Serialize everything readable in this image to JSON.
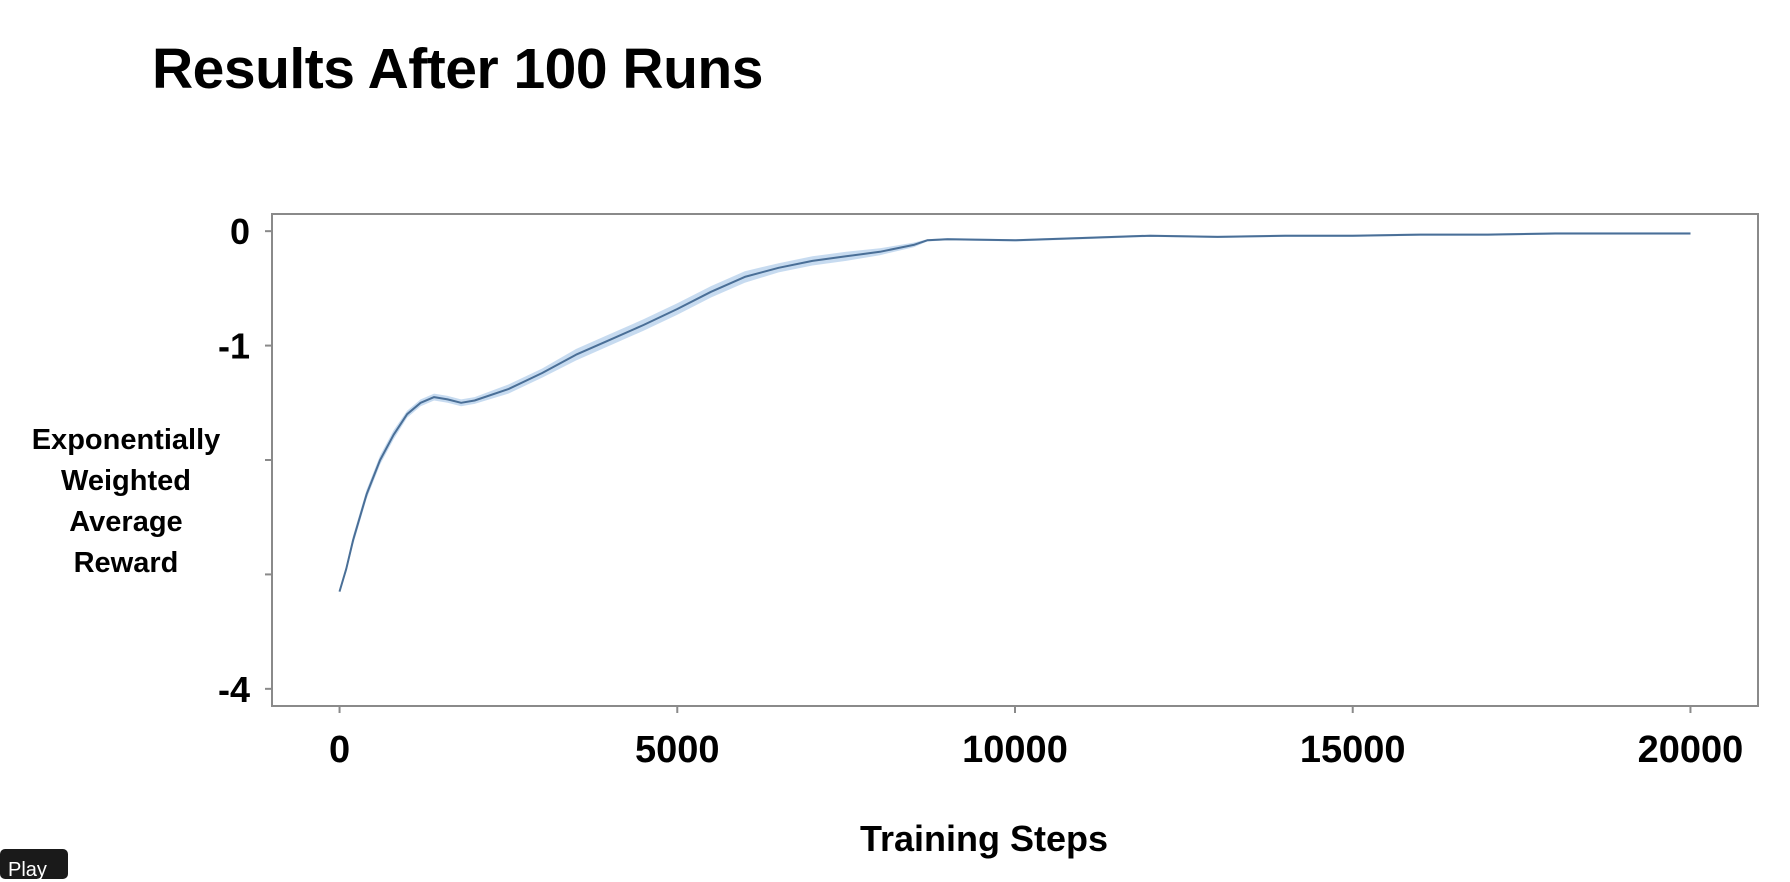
{
  "chart_data": {
    "type": "line",
    "title": "Results After 100 Runs",
    "xlabel": "Training Steps",
    "ylabel_lines": [
      "Exponentially",
      "Weighted",
      "Average",
      "Reward"
    ],
    "xlim": [
      -1000,
      21000
    ],
    "ylim": [
      -4.15,
      0.15
    ],
    "x_ticks": [
      0,
      5000,
      10000,
      15000,
      20000
    ],
    "x_tick_labels": [
      "0",
      "5000",
      "10000",
      "15000",
      "20000"
    ],
    "y_ticks": [
      0,
      -1,
      -2,
      -3,
      -4
    ],
    "y_tick_labels": [
      "0",
      "-1",
      "",
      "",
      "-4"
    ],
    "grid": false,
    "series": [
      {
        "color": "#4a6f97",
        "band_color": "#b9d2ec",
        "x": [
          0,
          100,
          200,
          400,
          600,
          800,
          1000,
          1200,
          1400,
          1600,
          1800,
          2000,
          2500,
          3000,
          3500,
          4000,
          4500,
          5000,
          5500,
          6000,
          6500,
          7000,
          7500,
          8000,
          8500,
          8700,
          9000,
          10000,
          11000,
          12000,
          13000,
          14000,
          15000,
          16000,
          17000,
          18000,
          19000,
          20000
        ],
        "y": [
          -3.15,
          -2.95,
          -2.7,
          -2.3,
          -2.0,
          -1.78,
          -1.6,
          -1.5,
          -1.45,
          -1.47,
          -1.5,
          -1.48,
          -1.38,
          -1.24,
          -1.08,
          -0.95,
          -0.82,
          -0.68,
          -0.53,
          -0.4,
          -0.32,
          -0.26,
          -0.22,
          -0.18,
          -0.12,
          -0.08,
          -0.07,
          -0.08,
          -0.06,
          -0.04,
          -0.05,
          -0.04,
          -0.04,
          -0.03,
          -0.03,
          -0.02,
          -0.02,
          -0.02
        ],
        "band": [
          0.0,
          0.03,
          0.04,
          0.04,
          0.04,
          0.04,
          0.03,
          0.03,
          0.03,
          0.03,
          0.03,
          0.03,
          0.04,
          0.04,
          0.05,
          0.05,
          0.05,
          0.05,
          0.05,
          0.05,
          0.04,
          0.04,
          0.04,
          0.03,
          0.02,
          0.01,
          0.01,
          0.01,
          0.01,
          0.01,
          0.01,
          0.01,
          0.01,
          0.01,
          0.01,
          0.01,
          0.01,
          0.01
        ]
      }
    ]
  },
  "controls": {
    "play_label": "Play"
  }
}
